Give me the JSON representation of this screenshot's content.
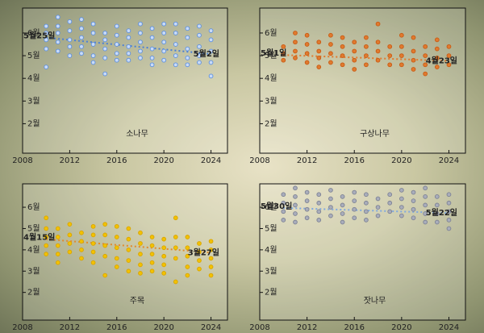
{
  "chart_data": [
    {
      "type": "scatter",
      "title": "소나무",
      "color": "#5b8fe0",
      "fill": "#c9dbf7",
      "trend_color": "#4a7fd6",
      "x": [
        2010,
        2011,
        2012,
        2013,
        2014,
        2015,
        2016,
        2017,
        2018,
        2019,
        2020,
        2021,
        2022,
        2023,
        2024
      ],
      "y_values": [
        [
          6.3,
          6.0,
          5.7,
          5.3,
          4.5
        ],
        [
          6.7,
          6.3,
          6.0,
          5.6,
          5.2
        ],
        [
          6.5,
          6.1,
          5.7,
          5.4,
          5.0
        ],
        [
          6.6,
          6.2,
          5.8,
          5.4,
          5.1
        ],
        [
          6.4,
          6.0,
          5.5,
          5.0,
          4.7
        ],
        [
          6.0,
          5.7,
          5.3,
          4.9,
          4.2
        ],
        [
          6.3,
          5.9,
          5.5,
          5.1,
          4.8
        ],
        [
          6.1,
          5.8,
          5.4,
          5.1,
          4.8
        ],
        [
          6.4,
          6.0,
          5.6,
          5.2,
          4.9
        ],
        [
          6.2,
          5.8,
          5.3,
          4.9,
          4.6
        ],
        [
          6.4,
          6.0,
          5.6,
          5.2,
          4.8
        ],
        [
          6.4,
          6.0,
          5.5,
          5.0,
          4.6
        ],
        [
          6.2,
          5.8,
          5.3,
          4.9,
          4.6
        ],
        [
          6.3,
          5.9,
          5.4,
          5.0,
          4.7
        ],
        [
          6.1,
          5.7,
          5.2,
          4.7,
          4.1
        ]
      ],
      "trend_x": [
        2010,
        2024
      ],
      "trend_y": [
        5.8,
        5.07
      ],
      "trend_labels": [
        "5월25일",
        "5월2일"
      ],
      "xlim": [
        2008,
        2025.4
      ],
      "ylim": [
        0.7,
        7.1
      ],
      "xticks": [
        2008,
        2012,
        2016,
        2020,
        2024
      ],
      "yticks": [
        {
          "value": 2,
          "label": "2월"
        },
        {
          "value": 3,
          "label": "3월"
        },
        {
          "value": 4,
          "label": "4월"
        },
        {
          "value": 5,
          "label": "5월"
        },
        {
          "value": 6,
          "label": "6월"
        }
      ]
    },
    {
      "type": "scatter",
      "title": "구상나무",
      "color": "#c85a14",
      "fill": "#e07a2e",
      "trend_color": "#e07a2e",
      "x": [
        2010,
        2011,
        2012,
        2013,
        2014,
        2015,
        2016,
        2017,
        2018,
        2019,
        2020,
        2021,
        2022,
        2023,
        2024
      ],
      "y_values": [
        [
          5.4,
          5.1,
          4.8
        ],
        [
          6.0,
          5.6,
          5.2,
          4.9
        ],
        [
          5.9,
          5.5,
          5.1,
          4.7
        ],
        [
          5.6,
          5.2,
          4.9,
          4.5
        ],
        [
          5.9,
          5.5,
          5.1,
          4.7
        ],
        [
          5.8,
          5.4,
          5.0,
          4.6
        ],
        [
          5.6,
          5.2,
          4.8,
          4.4
        ],
        [
          5.8,
          5.4,
          5.0,
          4.6
        ],
        [
          6.4,
          5.6,
          5.2,
          4.8
        ],
        [
          5.4,
          5.0,
          4.6
        ],
        [
          5.9,
          5.4,
          5.0,
          4.6
        ],
        [
          5.8,
          5.2,
          4.8,
          4.4
        ],
        [
          5.4,
          5.0,
          4.6,
          4.2
        ],
        [
          5.7,
          5.3,
          4.9,
          4.5
        ],
        [
          5.4,
          5.0,
          4.6
        ]
      ],
      "trend_x": [
        2010,
        2024
      ],
      "trend_y": [
        5.03,
        4.77
      ],
      "trend_labels": [
        "5월1일",
        "4월23일"
      ],
      "xlim": [
        2008,
        2025.4
      ],
      "ylim": [
        0.7,
        7.1
      ],
      "xticks": [
        2008,
        2012,
        2016,
        2020,
        2024
      ],
      "yticks": [
        {
          "value": 2,
          "label": "2월"
        },
        {
          "value": 3,
          "label": "3월"
        },
        {
          "value": 4,
          "label": "4월"
        },
        {
          "value": 5,
          "label": "5월"
        },
        {
          "value": 6,
          "label": "6월"
        }
      ]
    },
    {
      "type": "scatter",
      "title": "주목",
      "color": "#d9a400",
      "fill": "#f2c200",
      "trend_color": "#e08a2e",
      "x": [
        2010,
        2011,
        2012,
        2013,
        2014,
        2015,
        2016,
        2017,
        2018,
        2019,
        2020,
        2021,
        2022,
        2023,
        2024
      ],
      "y_values": [
        [
          5.5,
          5.0,
          4.6,
          4.2,
          3.8
        ],
        [
          5.0,
          4.6,
          4.2,
          3.8,
          3.4
        ],
        [
          5.2,
          4.7,
          4.3,
          3.9
        ],
        [
          4.8,
          4.4,
          4.0,
          3.6
        ],
        [
          5.1,
          4.7,
          4.3,
          3.9,
          3.4
        ],
        [
          5.2,
          4.7,
          4.2,
          3.7,
          2.8
        ],
        [
          5.1,
          4.6,
          4.1,
          3.6,
          3.2
        ],
        [
          5.0,
          4.5,
          4.0,
          3.5,
          3.0
        ],
        [
          4.8,
          4.3,
          3.8,
          3.3,
          2.9
        ],
        [
          4.6,
          4.2,
          3.8,
          3.4,
          3.0
        ],
        [
          4.5,
          4.1,
          3.7,
          3.3,
          2.9
        ],
        [
          5.5,
          4.6,
          4.1,
          3.6,
          2.5
        ],
        [
          4.6,
          4.1,
          3.7,
          3.2,
          2.8
        ],
        [
          4.3,
          3.9,
          3.5,
          3.1
        ],
        [
          4.4,
          4.0,
          3.6,
          3.2,
          2.8
        ]
      ],
      "trend_x": [
        2010,
        2024
      ],
      "trend_y": [
        4.5,
        3.87
      ],
      "trend_labels": [
        "4월15일",
        "3월27일"
      ],
      "xlim": [
        2008,
        2025.4
      ],
      "ylim": [
        0.7,
        7.1
      ],
      "xticks": [
        2008,
        2012,
        2016,
        2020,
        2024
      ],
      "yticks": [
        {
          "value": 2,
          "label": "2월"
        },
        {
          "value": 3,
          "label": "3월"
        },
        {
          "value": 4,
          "label": "4월"
        },
        {
          "value": 5,
          "label": "5월"
        },
        {
          "value": 6,
          "label": "6월"
        }
      ]
    },
    {
      "type": "scatter",
      "title": "잣나무",
      "color": "#7d8294",
      "fill": "#a9adbb",
      "trend_color": "#7fa8e0",
      "x": [
        2010,
        2011,
        2012,
        2013,
        2014,
        2015,
        2016,
        2017,
        2018,
        2019,
        2020,
        2021,
        2022,
        2023,
        2024
      ],
      "y_values": [
        [
          6.6,
          6.2,
          5.8,
          5.4
        ],
        [
          6.9,
          6.5,
          6.1,
          5.7,
          5.3
        ],
        [
          6.7,
          6.3,
          5.9,
          5.5
        ],
        [
          6.6,
          6.2,
          5.8,
          5.4
        ],
        [
          6.8,
          6.4,
          6.0,
          5.6
        ],
        [
          6.5,
          6.1,
          5.7,
          5.3
        ],
        [
          6.7,
          6.3,
          5.9,
          5.5
        ],
        [
          6.6,
          6.2,
          5.8,
          5.4
        ],
        [
          6.4,
          6.0,
          5.6
        ],
        [
          6.6,
          6.2,
          5.8
        ],
        [
          6.8,
          6.4,
          6.0,
          5.6
        ],
        [
          6.7,
          6.3,
          5.9,
          5.5
        ],
        [
          6.9,
          6.5,
          6.1,
          5.7,
          5.3
        ],
        [
          6.5,
          6.1,
          5.7,
          5.3
        ],
        [
          6.6,
          6.2,
          5.8,
          5.4,
          5.0
        ]
      ],
      "trend_x": [
        2010,
        2024
      ],
      "trend_y": [
        5.97,
        5.73
      ],
      "trend_labels": [
        "5월30일",
        "5월22일"
      ],
      "xlim": [
        2008,
        2025.4
      ],
      "ylim": [
        0.7,
        7.1
      ],
      "xticks": [
        2008,
        2012,
        2016,
        2020,
        2024
      ],
      "yticks": [
        {
          "value": 2,
          "label": "2월"
        },
        {
          "value": 3,
          "label": "3월"
        },
        {
          "value": 4,
          "label": "4월"
        },
        {
          "value": 5,
          "label": "5월"
        },
        {
          "value": 6,
          "label": "6월"
        }
      ]
    }
  ]
}
